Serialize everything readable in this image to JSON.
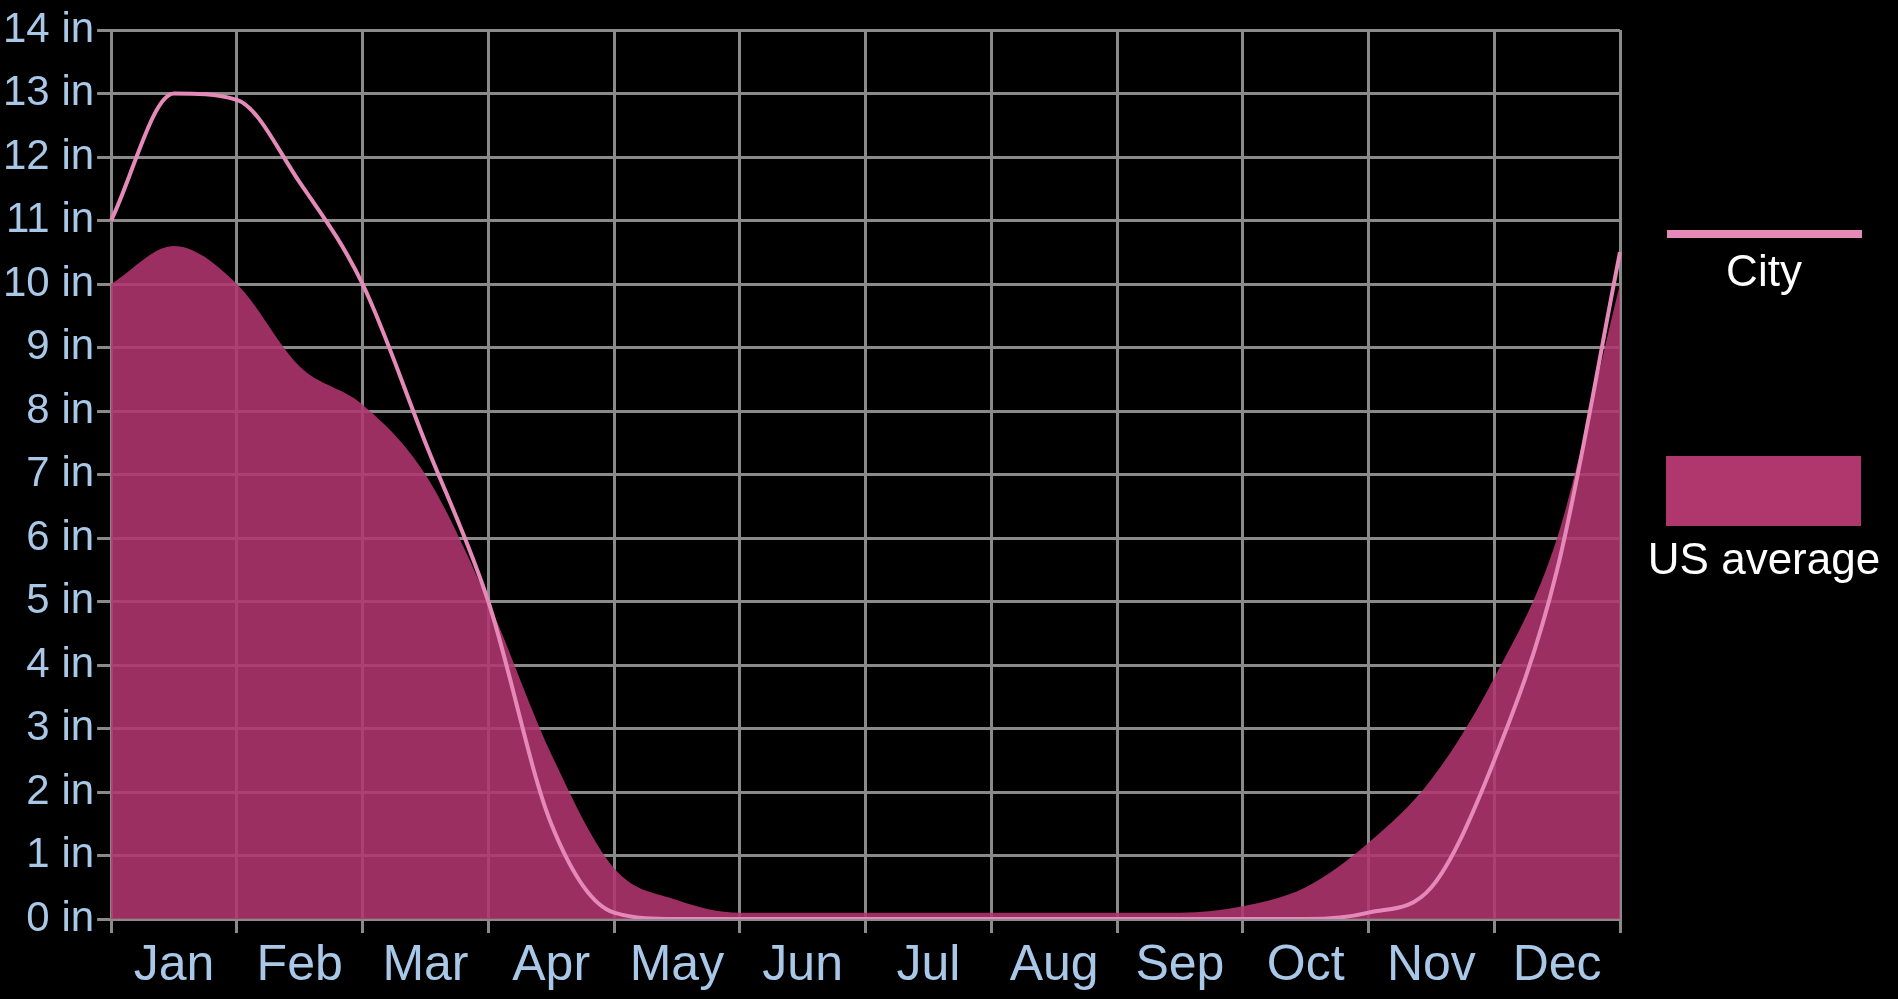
{
  "chart_data": {
    "type": "area",
    "categories": [
      null,
      "Jan",
      null,
      "Feb",
      null,
      "Mar",
      null,
      "Apr",
      null,
      "May",
      null,
      "Jun",
      null,
      "Jul",
      null,
      "Aug",
      null,
      "Sep",
      null,
      "Oct",
      null,
      "Nov",
      null,
      "Dec",
      null
    ],
    "series": [
      {
        "name": "City",
        "type": "line",
        "color": "#e58ab8",
        "values": [
          11.0,
          13.0,
          12.9,
          11.6,
          10.0,
          7.5,
          5.0,
          1.5,
          0.1,
          0,
          0,
          0,
          0,
          0,
          0,
          0,
          0,
          0,
          0,
          0,
          0.1,
          0.5,
          2.5,
          5.5,
          10.5
        ]
      },
      {
        "name": "US average",
        "color": "#b0366e",
        "values": [
          10.0,
          10.6,
          10.0,
          8.7,
          8.1,
          7.0,
          5.0,
          2.6,
          0.8,
          0.3,
          0.1,
          0.1,
          0.1,
          0.1,
          0.1,
          0.1,
          0.1,
          0.1,
          0.2,
          0.5,
          1.2,
          2.2,
          3.8,
          6.0,
          10.0
        ]
      }
    ],
    "ylim": [
      0,
      14
    ],
    "yticks": [
      {
        "value": 0,
        "label": "0 in"
      },
      {
        "value": 1,
        "label": "1 in"
      },
      {
        "value": 2,
        "label": "2 in"
      },
      {
        "value": 3,
        "label": "3 in"
      },
      {
        "value": 4,
        "label": "4 in"
      },
      {
        "value": 5,
        "label": "5 in"
      },
      {
        "value": 6,
        "label": "6 in"
      },
      {
        "value": 7,
        "label": "7 in"
      },
      {
        "value": 8,
        "label": "8 in"
      },
      {
        "value": 9,
        "label": "9 in"
      },
      {
        "value": 10,
        "label": "10 in"
      },
      {
        "value": 11,
        "label": "11 in"
      },
      {
        "value": 12,
        "label": "12 in"
      },
      {
        "value": 13,
        "label": "13 in"
      },
      {
        "value": 14,
        "label": "14 in"
      }
    ],
    "grid": true,
    "legend": "right",
    "marker": "none"
  }
}
